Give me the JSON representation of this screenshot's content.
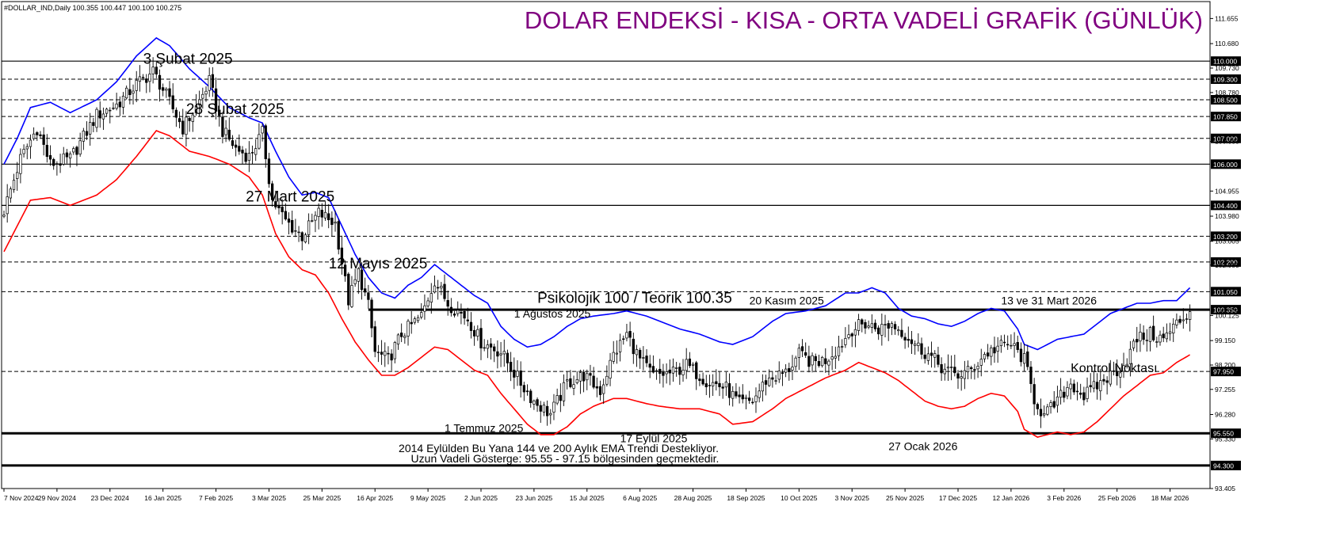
{
  "header": {
    "symbol_info": "#DOLLAR_IND,Daily  100.355 100.447 100.100 100.275",
    "title": "DOLAR ENDEKSİ - KISA - ORTA VADELİ GRAFİK (GÜNLÜK)"
  },
  "footer": {
    "note_line1": "2014 Eylülden Bu Yana 144 ve  200 Aylık EMA Trendi Destekliyor.",
    "note_line2": "Uzun Vadeli Gösterge: 95.55 - 97.15  bölgesinden geçmektedir."
  },
  "colors": {
    "title": "#800080",
    "upper_band": "#0000ff",
    "lower_band": "#ff0000",
    "candles": "#000000",
    "levels": "#000000",
    "highlight_label_bg": "#000000",
    "highlight_label_text": "#ffffff"
  },
  "chart_data": {
    "type": "candlestick",
    "x_axis": {
      "tick_labels": [
        "7 Nov 2024",
        "29 Nov 2024",
        "23 Dec 2024",
        "16 Jan 2025",
        "7 Feb 2025",
        "3 Mar 2025",
        "25 Mar 2025",
        "16 Apr 2025",
        "9 May 2025",
        "2 Jun 2025",
        "23 Jun 2025",
        "15 Jul 2025",
        "6 Aug 2025",
        "28 Aug 2025",
        "18 Sep 2025",
        "10 Oct 2025",
        "3 Nov 2025",
        "25 Nov 2025",
        "17 Dec 2025",
        "12 Jan 2026",
        "3 Feb 2026",
        "25 Feb 2026",
        "18 Mar 2026"
      ],
      "tick_index": [
        0,
        16,
        32,
        48,
        64,
        80,
        96,
        112,
        128,
        144,
        160,
        176,
        192,
        208,
        224,
        240,
        256,
        272,
        288,
        304,
        320,
        336,
        352
      ],
      "range": [
        0,
        360
      ]
    },
    "y_axis": {
      "range": [
        93.405,
        111.82
      ],
      "tick_labels": [
        {
          "value": 111.655,
          "label": "111.655"
        },
        {
          "value": 110.68,
          "label": "110.680"
        },
        {
          "value": 109.73,
          "label": "109.730"
        },
        {
          "value": 108.78,
          "label": "108.780"
        },
        {
          "value": 106.88,
          "label": "106.880"
        },
        {
          "value": 104.955,
          "label": "104.955"
        },
        {
          "value": 103.98,
          "label": "103.980"
        },
        {
          "value": 103.005,
          "label": "103.005"
        },
        {
          "value": 102.08,
          "label": "102.080"
        },
        {
          "value": 100.125,
          "label": "100.125"
        },
        {
          "value": 99.15,
          "label": "99.150"
        },
        {
          "value": 98.2,
          "label": "98.200"
        },
        {
          "value": 97.255,
          "label": "97.255"
        },
        {
          "value": 96.28,
          "label": "96.280"
        },
        {
          "value": 95.33,
          "label": "95.330"
        },
        {
          "value": 93.405,
          "label": "93.405"
        }
      ]
    },
    "levels": [
      {
        "value": 110.0,
        "label": "110.000",
        "style": "solid"
      },
      {
        "value": 109.3,
        "label": "109.300",
        "style": "dashed"
      },
      {
        "value": 108.5,
        "label": "108.500",
        "style": "dashed"
      },
      {
        "value": 107.85,
        "label": "107.850",
        "style": "dashed"
      },
      {
        "value": 107.0,
        "label": "107.000",
        "style": "dashed"
      },
      {
        "value": 106.0,
        "label": "106.000",
        "style": "solid"
      },
      {
        "value": 104.4,
        "label": "104.400",
        "style": "solid"
      },
      {
        "value": 103.2,
        "label": "103.200",
        "style": "dashed"
      },
      {
        "value": 102.2,
        "label": "102.200",
        "style": "dashed"
      },
      {
        "value": 101.05,
        "label": "101.050",
        "style": "dashed"
      },
      {
        "value": 100.35,
        "label": "100.350",
        "style": "thick",
        "start_index": 110
      },
      {
        "value": 97.95,
        "label": "97.950",
        "style": "dashed"
      },
      {
        "value": 95.55,
        "label": "95.550",
        "style": "thick"
      },
      {
        "value": 94.3,
        "label": "94.300",
        "style": "thick"
      }
    ],
    "current_price": {
      "value": 100.275,
      "label": "100.275"
    },
    "close_anchors": [
      [
        0,
        104.2
      ],
      [
        5,
        106.2
      ],
      [
        10,
        107.4
      ],
      [
        14,
        106.0
      ],
      [
        20,
        106.2
      ],
      [
        28,
        107.9
      ],
      [
        34,
        108.3
      ],
      [
        40,
        109.1
      ],
      [
        45,
        109.6
      ],
      [
        48,
        108.9
      ],
      [
        54,
        107.4
      ],
      [
        58,
        108.2
      ],
      [
        62,
        109.2
      ],
      [
        66,
        107.3
      ],
      [
        70,
        106.6
      ],
      [
        74,
        106.3
      ],
      [
        78,
        107.2
      ],
      [
        81,
        104.6
      ],
      [
        85,
        103.8
      ],
      [
        90,
        103.2
      ],
      [
        95,
        104.1
      ],
      [
        100,
        103.7
      ],
      [
        104,
        100.7
      ],
      [
        107,
        101.8
      ],
      [
        110,
        100.5
      ],
      [
        112,
        98.7
      ],
      [
        116,
        98.4
      ],
      [
        120,
        99.4
      ],
      [
        126,
        100.1
      ],
      [
        130,
        101.5
      ],
      [
        134,
        100.6
      ],
      [
        140,
        100.0
      ],
      [
        144,
        99.1
      ],
      [
        150,
        98.7
      ],
      [
        156,
        97.5
      ],
      [
        160,
        96.8
      ],
      [
        165,
        96.3
      ],
      [
        170,
        97.5
      ],
      [
        175,
        97.8
      ],
      [
        180,
        97.2
      ],
      [
        184,
        98.6
      ],
      [
        188,
        99.4
      ],
      [
        192,
        98.4
      ],
      [
        196,
        97.8
      ],
      [
        202,
        97.9
      ],
      [
        206,
        98.2
      ],
      [
        212,
        97.6
      ],
      [
        218,
        97.3
      ],
      [
        222,
        96.7
      ],
      [
        226,
        96.8
      ],
      [
        230,
        97.6
      ],
      [
        236,
        97.9
      ],
      [
        240,
        98.6
      ],
      [
        244,
        98.3
      ],
      [
        248,
        98.4
      ],
      [
        252,
        98.9
      ],
      [
        256,
        99.6
      ],
      [
        260,
        99.8
      ],
      [
        264,
        99.6
      ],
      [
        268,
        99.8
      ],
      [
        272,
        99.4
      ],
      [
        276,
        98.9
      ],
      [
        280,
        98.5
      ],
      [
        284,
        98.0
      ],
      [
        288,
        97.8
      ],
      [
        292,
        98.0
      ],
      [
        296,
        98.6
      ],
      [
        300,
        98.9
      ],
      [
        304,
        99.0
      ],
      [
        308,
        98.4
      ],
      [
        311,
        96.9
      ],
      [
        314,
        96.2
      ],
      [
        318,
        96.8
      ],
      [
        322,
        97.5
      ],
      [
        326,
        97.0
      ],
      [
        330,
        97.4
      ],
      [
        334,
        97.8
      ],
      [
        338,
        98.2
      ],
      [
        342,
        99.2
      ],
      [
        346,
        99.4
      ],
      [
        350,
        99.2
      ],
      [
        354,
        99.8
      ],
      [
        358,
        100.275
      ]
    ],
    "upper_band_anchors": [
      [
        0,
        106.0
      ],
      [
        4,
        107.0
      ],
      [
        8,
        108.2
      ],
      [
        14,
        108.4
      ],
      [
        20,
        108.0
      ],
      [
        28,
        108.5
      ],
      [
        34,
        109.2
      ],
      [
        40,
        110.2
      ],
      [
        46,
        110.9
      ],
      [
        50,
        110.6
      ],
      [
        56,
        109.7
      ],
      [
        62,
        109.0
      ],
      [
        68,
        108.2
      ],
      [
        74,
        107.8
      ],
      [
        78,
        107.6
      ],
      [
        82,
        106.5
      ],
      [
        86,
        105.5
      ],
      [
        90,
        104.8
      ],
      [
        94,
        104.9
      ],
      [
        98,
        104.7
      ],
      [
        102,
        103.6
      ],
      [
        106,
        102.5
      ],
      [
        110,
        101.6
      ],
      [
        114,
        101.0
      ],
      [
        118,
        100.8
      ],
      [
        122,
        101.3
      ],
      [
        126,
        101.6
      ],
      [
        130,
        102.1
      ],
      [
        134,
        101.7
      ],
      [
        138,
        101.3
      ],
      [
        142,
        100.9
      ],
      [
        146,
        100.6
      ],
      [
        150,
        99.7
      ],
      [
        154,
        99.2
      ],
      [
        158,
        98.9
      ],
      [
        162,
        99.0
      ],
      [
        166,
        99.3
      ],
      [
        170,
        99.7
      ],
      [
        174,
        100.0
      ],
      [
        178,
        100.1
      ],
      [
        184,
        100.2
      ],
      [
        188,
        100.3
      ],
      [
        194,
        100.1
      ],
      [
        198,
        99.9
      ],
      [
        204,
        99.6
      ],
      [
        210,
        99.4
      ],
      [
        216,
        99.1
      ],
      [
        220,
        99.0
      ],
      [
        226,
        99.3
      ],
      [
        232,
        99.9
      ],
      [
        236,
        100.2
      ],
      [
        242,
        100.3
      ],
      [
        248,
        100.5
      ],
      [
        254,
        101.0
      ],
      [
        258,
        101.0
      ],
      [
        262,
        101.2
      ],
      [
        266,
        101.0
      ],
      [
        270,
        100.4
      ],
      [
        274,
        100.1
      ],
      [
        278,
        100.0
      ],
      [
        282,
        99.8
      ],
      [
        286,
        99.7
      ],
      [
        290,
        99.9
      ],
      [
        294,
        100.2
      ],
      [
        298,
        100.4
      ],
      [
        302,
        100.3
      ],
      [
        306,
        99.6
      ],
      [
        308,
        99.0
      ],
      [
        312,
        98.8
      ],
      [
        318,
        99.2
      ],
      [
        322,
        99.3
      ],
      [
        326,
        99.4
      ],
      [
        330,
        99.8
      ],
      [
        334,
        100.2
      ],
      [
        338,
        100.4
      ],
      [
        342,
        100.6
      ],
      [
        346,
        100.6
      ],
      [
        350,
        100.7
      ],
      [
        354,
        100.7
      ],
      [
        358,
        101.2
      ]
    ],
    "lower_band_anchors": [
      [
        0,
        102.6
      ],
      [
        4,
        103.6
      ],
      [
        8,
        104.6
      ],
      [
        14,
        104.7
      ],
      [
        20,
        104.4
      ],
      [
        28,
        104.8
      ],
      [
        34,
        105.4
      ],
      [
        40,
        106.3
      ],
      [
        46,
        107.3
      ],
      [
        50,
        107.1
      ],
      [
        56,
        106.5
      ],
      [
        62,
        106.3
      ],
      [
        68,
        106.0
      ],
      [
        74,
        105.5
      ],
      [
        78,
        104.8
      ],
      [
        82,
        103.3
      ],
      [
        86,
        102.4
      ],
      [
        90,
        101.9
      ],
      [
        94,
        101.7
      ],
      [
        98,
        101.0
      ],
      [
        102,
        100.0
      ],
      [
        106,
        99.1
      ],
      [
        110,
        98.4
      ],
      [
        114,
        97.8
      ],
      [
        118,
        97.8
      ],
      [
        122,
        98.1
      ],
      [
        126,
        98.5
      ],
      [
        130,
        98.9
      ],
      [
        134,
        98.8
      ],
      [
        138,
        98.4
      ],
      [
        142,
        98.0
      ],
      [
        146,
        97.8
      ],
      [
        150,
        97.1
      ],
      [
        154,
        96.5
      ],
      [
        158,
        95.9
      ],
      [
        162,
        95.5
      ],
      [
        166,
        95.5
      ],
      [
        170,
        95.8
      ],
      [
        174,
        96.3
      ],
      [
        178,
        96.6
      ],
      [
        184,
        96.9
      ],
      [
        188,
        96.9
      ],
      [
        194,
        96.7
      ],
      [
        198,
        96.6
      ],
      [
        204,
        96.5
      ],
      [
        210,
        96.5
      ],
      [
        216,
        96.3
      ],
      [
        220,
        95.9
      ],
      [
        226,
        96.0
      ],
      [
        232,
        96.5
      ],
      [
        236,
        96.9
      ],
      [
        242,
        97.3
      ],
      [
        248,
        97.7
      ],
      [
        254,
        98.0
      ],
      [
        258,
        98.3
      ],
      [
        262,
        98.1
      ],
      [
        266,
        97.9
      ],
      [
        270,
        97.6
      ],
      [
        274,
        97.2
      ],
      [
        278,
        96.8
      ],
      [
        282,
        96.6
      ],
      [
        286,
        96.5
      ],
      [
        290,
        96.6
      ],
      [
        294,
        96.9
      ],
      [
        298,
        97.1
      ],
      [
        302,
        97.0
      ],
      [
        306,
        96.4
      ],
      [
        308,
        95.7
      ],
      [
        312,
        95.4
      ],
      [
        318,
        95.6
      ],
      [
        322,
        95.5
      ],
      [
        326,
        95.6
      ],
      [
        330,
        96.0
      ],
      [
        334,
        96.5
      ],
      [
        338,
        97.0
      ],
      [
        342,
        97.4
      ],
      [
        346,
        97.8
      ],
      [
        350,
        97.9
      ],
      [
        354,
        98.3
      ],
      [
        358,
        98.6
      ]
    ],
    "annotations": [
      {
        "text": "3 Şubat 2025",
        "x": 42,
        "y": 109.9,
        "size": 19
      },
      {
        "text": "28 Şubat 2025",
        "x": 55,
        "y": 107.95,
        "size": 19
      },
      {
        "text": "27 Mart 2025",
        "x": 73,
        "y": 104.55,
        "size": 19
      },
      {
        "text": "12 Mayıs 2025",
        "x": 98,
        "y": 101.95,
        "size": 19
      },
      {
        "text": "Psikolojik 100 / Teorik 100.35",
        "x": 161,
        "y": 100.62,
        "size": 19
      },
      {
        "text": "20 Kasım 2025",
        "x": 225,
        "y": 100.55,
        "size": 14
      },
      {
        "text": "13 ve 31 Mart 2026",
        "x": 301,
        "y": 100.55,
        "size": 14
      },
      {
        "text": "1 Ağustos 2025",
        "x": 154,
        "y": 100.05,
        "size": 14
      },
      {
        "text": "Kontrol Noktası",
        "x": 322,
        "y": 97.92,
        "size": 16
      },
      {
        "text": "1 Temmuz 2025",
        "x": 133,
        "y": 95.6,
        "size": 14
      },
      {
        "text": "17 Eylül 2025",
        "x": 186,
        "y": 95.2,
        "size": 14
      },
      {
        "text": "27 Ocak 2026",
        "x": 267,
        "y": 94.9,
        "size": 14
      }
    ]
  }
}
